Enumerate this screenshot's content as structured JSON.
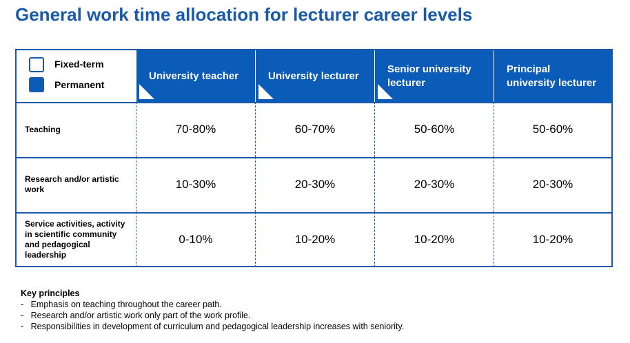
{
  "header": {
    "title": "General work time allocation for lecturer career levels"
  },
  "legend": {
    "items": [
      "Fixed-term",
      "Permanent"
    ]
  },
  "table": {
    "columns": [
      "University teacher",
      "University lecturer",
      "Senior university lecturer",
      "Principal university lecturer"
    ],
    "rows": [
      [
        "Teaching",
        "70-80%",
        "60-70%",
        "50-60%",
        "50-60%"
      ],
      [
        "Research and/or artistic work",
        "10-30%",
        "20-30%",
        "20-30%",
        "20-30%"
      ],
      [
        "Service activities, activity in scientific community and pedagogical leadership",
        "0-10%",
        "10-20%",
        "10-20%",
        "10-20%"
      ]
    ]
  },
  "notes": {
    "title": "Key principles",
    "items": [
      "Emphasis on teaching throughout the career path.",
      "Research and/or artistic work only part of the work profile.",
      "Responsibilities in development of curriculum and pedagogical leadership increases with seniority."
    ]
  }
}
